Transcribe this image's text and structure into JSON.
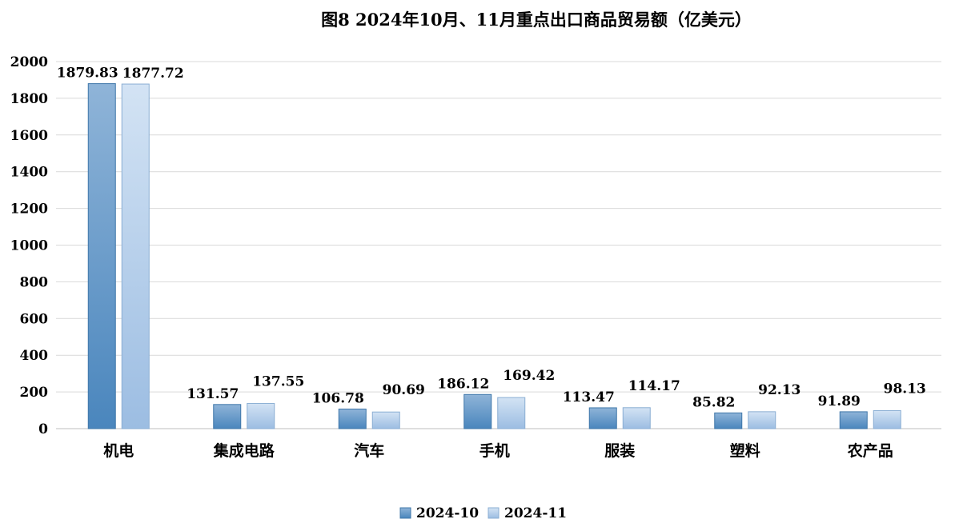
{
  "chart_data": {
    "type": "bar",
    "title": "图8 2024年10月、11月重点出口商品贸易额（亿美元）",
    "xlabel": "",
    "ylabel": "",
    "categories": [
      "机电",
      "集成电路",
      "汽车",
      "手机",
      "服装",
      "塑料",
      "农产品"
    ],
    "series": [
      {
        "name": "2024-10",
        "values": [
          1879.83,
          131.57,
          106.78,
          186.12,
          113.47,
          85.82,
          91.89
        ],
        "labels": [
          "1879.83",
          "131.57",
          "106.78",
          "186.12",
          "113.47",
          "85.82",
          "91.89"
        ],
        "color_dark": "#4a86bd",
        "color_light": "#8fb4d8"
      },
      {
        "name": "2024-11",
        "values": [
          1877.72,
          137.55,
          90.69,
          169.42,
          114.17,
          92.13,
          98.13
        ],
        "labels": [
          "1877.72",
          "137.55",
          "90.69",
          "169.42",
          "114.17",
          "92.13",
          "98.13"
        ],
        "color_dark": "#9cbde2",
        "color_light": "#d3e3f4"
      }
    ],
    "ylim": [
      0,
      2000
    ],
    "yticks": [
      0,
      200,
      400,
      600,
      800,
      1000,
      1200,
      1400,
      1600,
      1800,
      2000
    ],
    "ytick_labels": [
      "0",
      "200",
      "400",
      "600",
      "800",
      "1000",
      "1200",
      "1400",
      "1600",
      "1800",
      "2000"
    ],
    "grid": true,
    "legend_position": "bottom-center"
  }
}
